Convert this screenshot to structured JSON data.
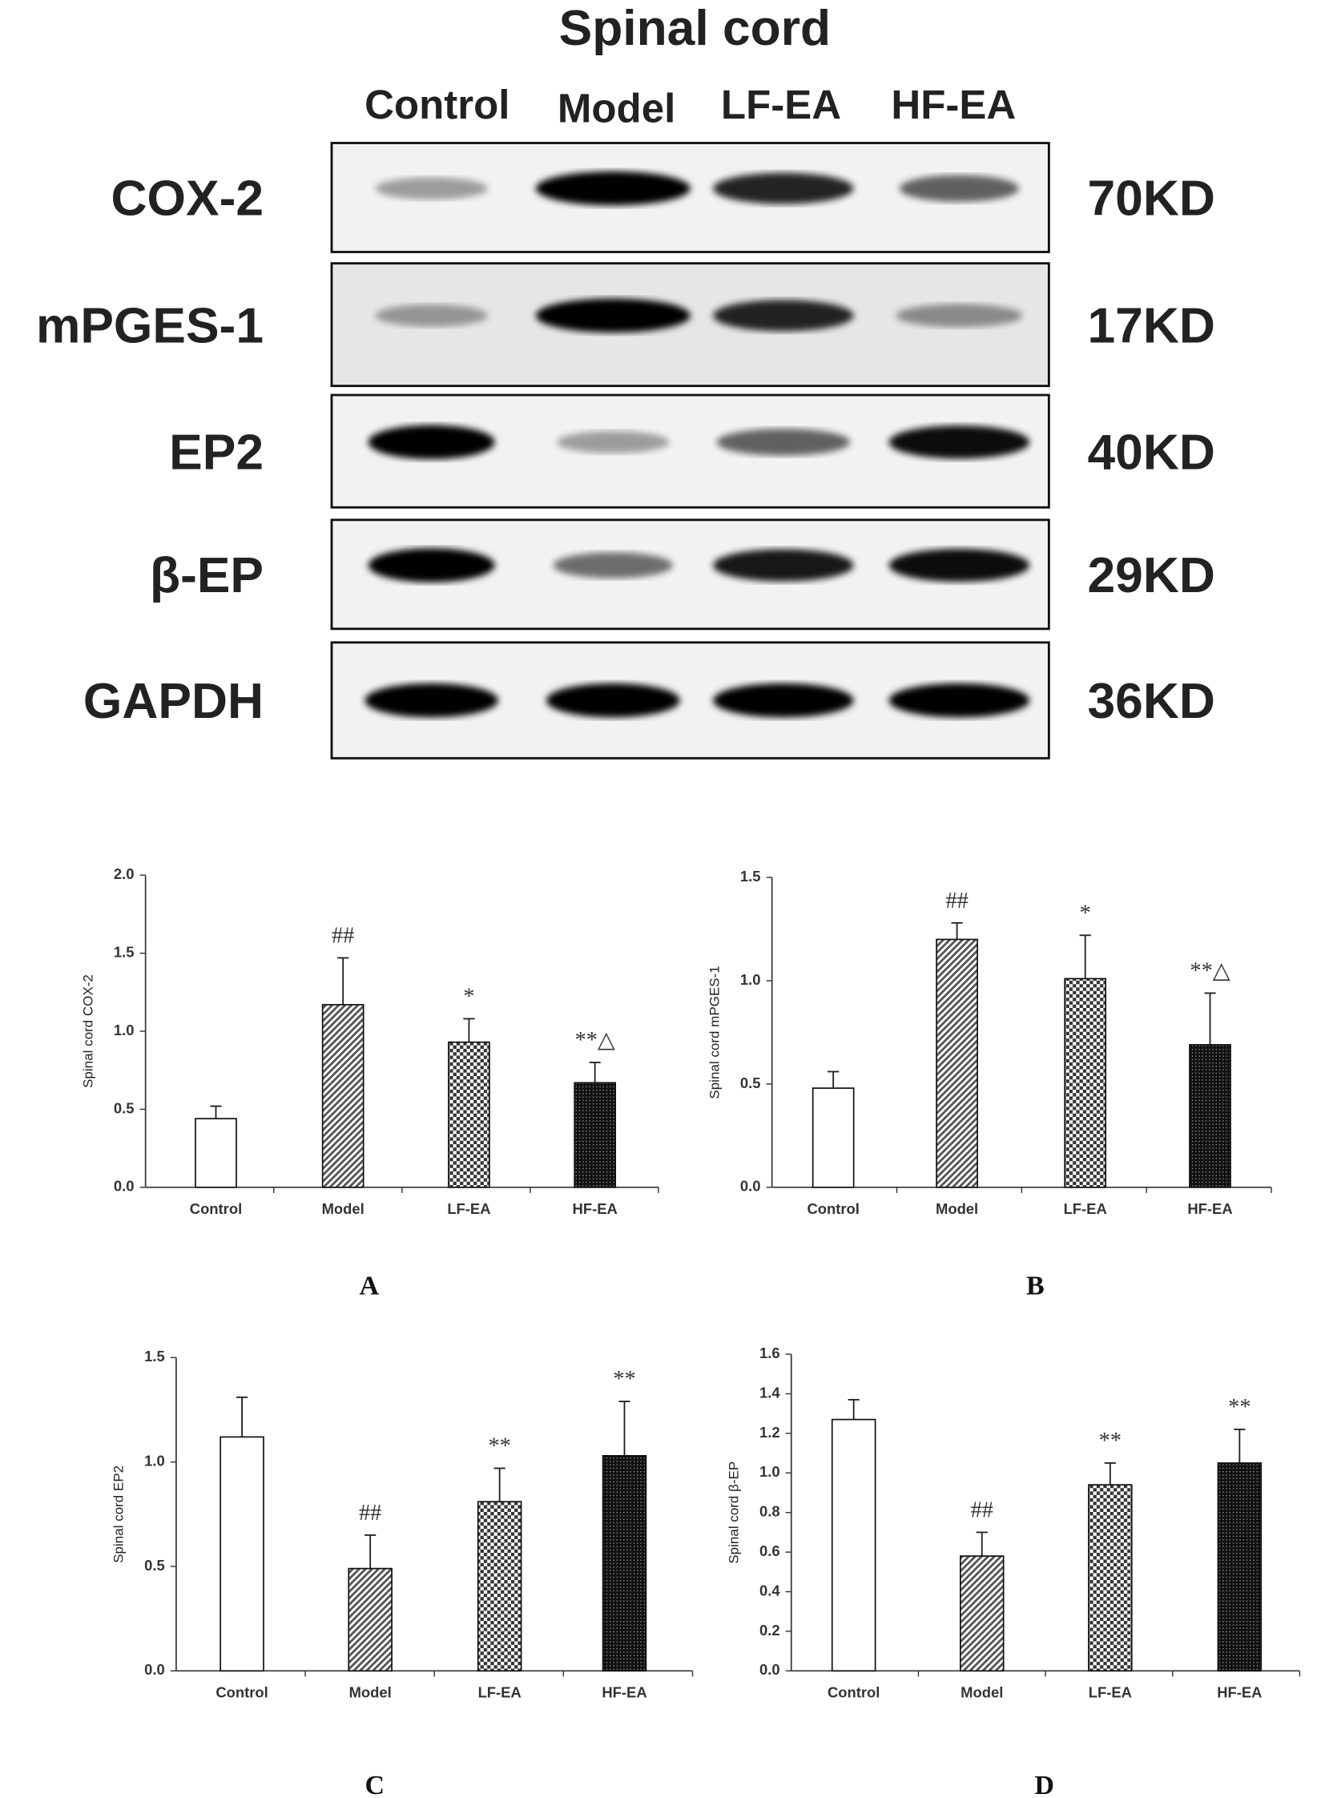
{
  "blot": {
    "title": "Spinal cord",
    "lanes": [
      "Control",
      "Model",
      "LF-EA",
      "HF-EA"
    ],
    "rows": [
      {
        "protein": "COX-2",
        "weight": "70KD"
      },
      {
        "protein": "mPGES-1",
        "weight": "17KD"
      },
      {
        "protein": "EP2",
        "weight": "40KD"
      },
      {
        "protein": "β-EP",
        "weight": "29KD"
      },
      {
        "protein": "GAPDH",
        "weight": "36KD"
      }
    ]
  },
  "chart_data": [
    {
      "type": "bar",
      "panel_label": "A",
      "y_label": "Spinal cord  COX-2",
      "categories": [
        "Control",
        "Model",
        "LF-EA",
        "HF-EA"
      ],
      "values": [
        0.44,
        1.17,
        0.93,
        0.67
      ],
      "errors": [
        0.08,
        0.3,
        0.15,
        0.13
      ],
      "annotations": [
        null,
        "##",
        "*",
        "**△"
      ],
      "ylim": [
        0,
        2
      ],
      "yticks": [
        {
          "value": 0,
          "label": "0.0"
        },
        {
          "value": 0.5,
          "label": "0.5"
        },
        {
          "value": 1,
          "label": "1.0"
        },
        {
          "value": 1.5,
          "label": "1.5"
        },
        {
          "value": 2,
          "label": "2.0"
        }
      ]
    },
    {
      "type": "bar",
      "panel_label": "B",
      "y_label": "Spinal cord mPGES-1",
      "categories": [
        "Control",
        "Model",
        "LF-EA",
        "HF-EA"
      ],
      "values": [
        0.48,
        1.2,
        1.01,
        0.69
      ],
      "errors": [
        0.08,
        0.08,
        0.21,
        0.25
      ],
      "annotations": [
        null,
        "##",
        "*",
        "**△"
      ],
      "ylim": [
        0,
        1.5
      ],
      "yticks": [
        {
          "value": 0,
          "label": "0.0"
        },
        {
          "value": 0.5,
          "label": "0.5"
        },
        {
          "value": 1,
          "label": "1.0"
        },
        1.5
      ]
    },
    {
      "type": "bar",
      "panel_label": "C",
      "y_label": "Spinal cord EP2",
      "categories": [
        "Control",
        "Model",
        "LF-EA",
        "HF-EA"
      ],
      "values": [
        1.12,
        0.49,
        0.81,
        1.03
      ],
      "errors": [
        0.19,
        0.16,
        0.16,
        0.26
      ],
      "annotations": [
        null,
        "##",
        "**",
        "**"
      ],
      "ylim": [
        0,
        1.5
      ],
      "yticks": [
        {
          "value": 0,
          "label": "0.0"
        },
        {
          "value": 0.5,
          "label": "0.5"
        },
        {
          "value": 1,
          "label": "1.0"
        },
        1.5
      ]
    },
    {
      "type": "bar",
      "panel_label": "D",
      "y_label": "Spinal cord  β-EP",
      "categories": [
        "Control",
        "Model",
        "LF-EA",
        "HF-EA"
      ],
      "values": [
        1.27,
        0.58,
        0.94,
        1.05
      ],
      "errors": [
        0.1,
        0.12,
        0.11,
        0.17
      ],
      "annotations": [
        null,
        "##",
        "**",
        "**"
      ],
      "ylim": [
        0,
        1.6
      ],
      "yticks": [
        {
          "value": 0,
          "label": "0.0"
        },
        0.2,
        0.4,
        0.6,
        0.8,
        {
          "value": 1,
          "label": "1.0"
        },
        1.2,
        1.4,
        1.6
      ]
    }
  ]
}
